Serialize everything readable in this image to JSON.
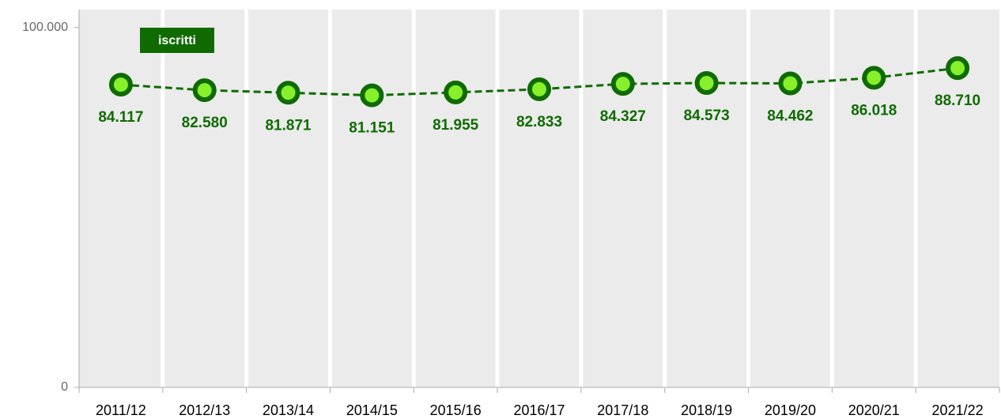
{
  "chart_data": {
    "type": "line",
    "categories": [
      "2011/12",
      "2012/13",
      "2013/14",
      "2014/15",
      "2015/16",
      "2016/17",
      "2017/18",
      "2018/19",
      "2019/20",
      "2020/21",
      "2021/22"
    ],
    "series": [
      {
        "name": "iscritti",
        "color": "#0f6b00",
        "marker_color": "#86f02a",
        "values": [
          84117,
          82580,
          81871,
          81151,
          81955,
          82833,
          84327,
          84573,
          84462,
          86018,
          88710
        ],
        "value_labels": [
          "84.117",
          "82.580",
          "81.871",
          "81.151",
          "81.955",
          "82.833",
          "84.327",
          "84.573",
          "84.462",
          "86.018",
          "88.710"
        ]
      }
    ],
    "ylim": [
      0,
      105000
    ],
    "yticks": [
      0,
      {
        "value": 100000,
        "label": "100.000"
      }
    ],
    "legend": "top-left"
  }
}
